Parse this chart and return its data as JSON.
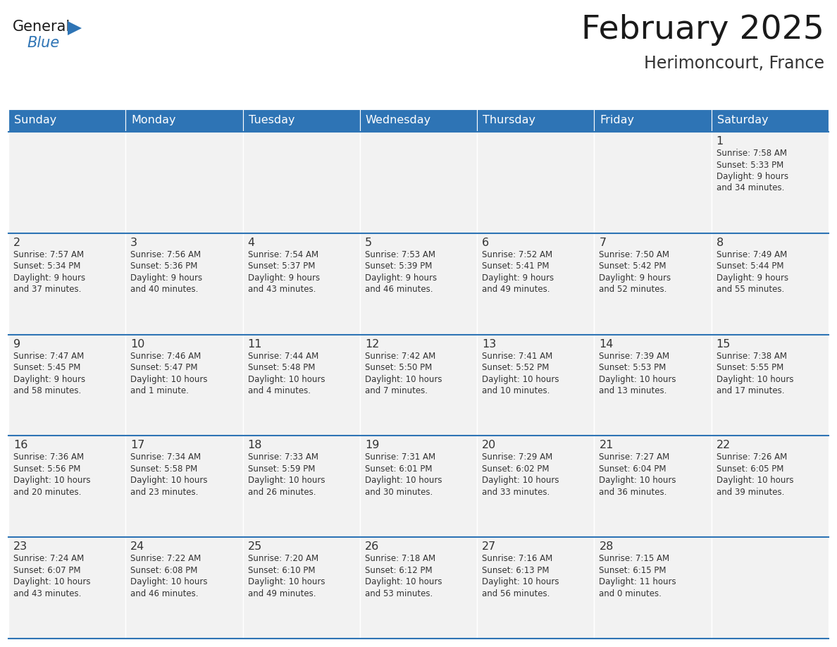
{
  "title": "February 2025",
  "subtitle": "Herimoncourt, France",
  "days_of_week": [
    "Sunday",
    "Monday",
    "Tuesday",
    "Wednesday",
    "Thursday",
    "Friday",
    "Saturday"
  ],
  "header_bg": "#2E74B5",
  "header_text": "#FFFFFF",
  "cell_bg_light": "#F2F2F2",
  "border_color": "#2E74B5",
  "text_color": "#333333",
  "title_color": "#1a1a1a",
  "subtitle_color": "#333333",
  "calendar_data": [
    [
      null,
      null,
      null,
      null,
      null,
      null,
      {
        "day": "1",
        "sunrise": "Sunrise: 7:58 AM",
        "sunset": "Sunset: 5:33 PM",
        "daylight": "Daylight: 9 hours\nand 34 minutes."
      }
    ],
    [
      {
        "day": "2",
        "sunrise": "Sunrise: 7:57 AM",
        "sunset": "Sunset: 5:34 PM",
        "daylight": "Daylight: 9 hours\nand 37 minutes."
      },
      {
        "day": "3",
        "sunrise": "Sunrise: 7:56 AM",
        "sunset": "Sunset: 5:36 PM",
        "daylight": "Daylight: 9 hours\nand 40 minutes."
      },
      {
        "day": "4",
        "sunrise": "Sunrise: 7:54 AM",
        "sunset": "Sunset: 5:37 PM",
        "daylight": "Daylight: 9 hours\nand 43 minutes."
      },
      {
        "day": "5",
        "sunrise": "Sunrise: 7:53 AM",
        "sunset": "Sunset: 5:39 PM",
        "daylight": "Daylight: 9 hours\nand 46 minutes."
      },
      {
        "day": "6",
        "sunrise": "Sunrise: 7:52 AM",
        "sunset": "Sunset: 5:41 PM",
        "daylight": "Daylight: 9 hours\nand 49 minutes."
      },
      {
        "day": "7",
        "sunrise": "Sunrise: 7:50 AM",
        "sunset": "Sunset: 5:42 PM",
        "daylight": "Daylight: 9 hours\nand 52 minutes."
      },
      {
        "day": "8",
        "sunrise": "Sunrise: 7:49 AM",
        "sunset": "Sunset: 5:44 PM",
        "daylight": "Daylight: 9 hours\nand 55 minutes."
      }
    ],
    [
      {
        "day": "9",
        "sunrise": "Sunrise: 7:47 AM",
        "sunset": "Sunset: 5:45 PM",
        "daylight": "Daylight: 9 hours\nand 58 minutes."
      },
      {
        "day": "10",
        "sunrise": "Sunrise: 7:46 AM",
        "sunset": "Sunset: 5:47 PM",
        "daylight": "Daylight: 10 hours\nand 1 minute."
      },
      {
        "day": "11",
        "sunrise": "Sunrise: 7:44 AM",
        "sunset": "Sunset: 5:48 PM",
        "daylight": "Daylight: 10 hours\nand 4 minutes."
      },
      {
        "day": "12",
        "sunrise": "Sunrise: 7:42 AM",
        "sunset": "Sunset: 5:50 PM",
        "daylight": "Daylight: 10 hours\nand 7 minutes."
      },
      {
        "day": "13",
        "sunrise": "Sunrise: 7:41 AM",
        "sunset": "Sunset: 5:52 PM",
        "daylight": "Daylight: 10 hours\nand 10 minutes."
      },
      {
        "day": "14",
        "sunrise": "Sunrise: 7:39 AM",
        "sunset": "Sunset: 5:53 PM",
        "daylight": "Daylight: 10 hours\nand 13 minutes."
      },
      {
        "day": "15",
        "sunrise": "Sunrise: 7:38 AM",
        "sunset": "Sunset: 5:55 PM",
        "daylight": "Daylight: 10 hours\nand 17 minutes."
      }
    ],
    [
      {
        "day": "16",
        "sunrise": "Sunrise: 7:36 AM",
        "sunset": "Sunset: 5:56 PM",
        "daylight": "Daylight: 10 hours\nand 20 minutes."
      },
      {
        "day": "17",
        "sunrise": "Sunrise: 7:34 AM",
        "sunset": "Sunset: 5:58 PM",
        "daylight": "Daylight: 10 hours\nand 23 minutes."
      },
      {
        "day": "18",
        "sunrise": "Sunrise: 7:33 AM",
        "sunset": "Sunset: 5:59 PM",
        "daylight": "Daylight: 10 hours\nand 26 minutes."
      },
      {
        "day": "19",
        "sunrise": "Sunrise: 7:31 AM",
        "sunset": "Sunset: 6:01 PM",
        "daylight": "Daylight: 10 hours\nand 30 minutes."
      },
      {
        "day": "20",
        "sunrise": "Sunrise: 7:29 AM",
        "sunset": "Sunset: 6:02 PM",
        "daylight": "Daylight: 10 hours\nand 33 minutes."
      },
      {
        "day": "21",
        "sunrise": "Sunrise: 7:27 AM",
        "sunset": "Sunset: 6:04 PM",
        "daylight": "Daylight: 10 hours\nand 36 minutes."
      },
      {
        "day": "22",
        "sunrise": "Sunrise: 7:26 AM",
        "sunset": "Sunset: 6:05 PM",
        "daylight": "Daylight: 10 hours\nand 39 minutes."
      }
    ],
    [
      {
        "day": "23",
        "sunrise": "Sunrise: 7:24 AM",
        "sunset": "Sunset: 6:07 PM",
        "daylight": "Daylight: 10 hours\nand 43 minutes."
      },
      {
        "day": "24",
        "sunrise": "Sunrise: 7:22 AM",
        "sunset": "Sunset: 6:08 PM",
        "daylight": "Daylight: 10 hours\nand 46 minutes."
      },
      {
        "day": "25",
        "sunrise": "Sunrise: 7:20 AM",
        "sunset": "Sunset: 6:10 PM",
        "daylight": "Daylight: 10 hours\nand 49 minutes."
      },
      {
        "day": "26",
        "sunrise": "Sunrise: 7:18 AM",
        "sunset": "Sunset: 6:12 PM",
        "daylight": "Daylight: 10 hours\nand 53 minutes."
      },
      {
        "day": "27",
        "sunrise": "Sunrise: 7:16 AM",
        "sunset": "Sunset: 6:13 PM",
        "daylight": "Daylight: 10 hours\nand 56 minutes."
      },
      {
        "day": "28",
        "sunrise": "Sunrise: 7:15 AM",
        "sunset": "Sunset: 6:15 PM",
        "daylight": "Daylight: 11 hours\nand 0 minutes."
      },
      null
    ]
  ],
  "logo_general_color": "#1a1a1a",
  "logo_blue_color": "#2E74B5"
}
